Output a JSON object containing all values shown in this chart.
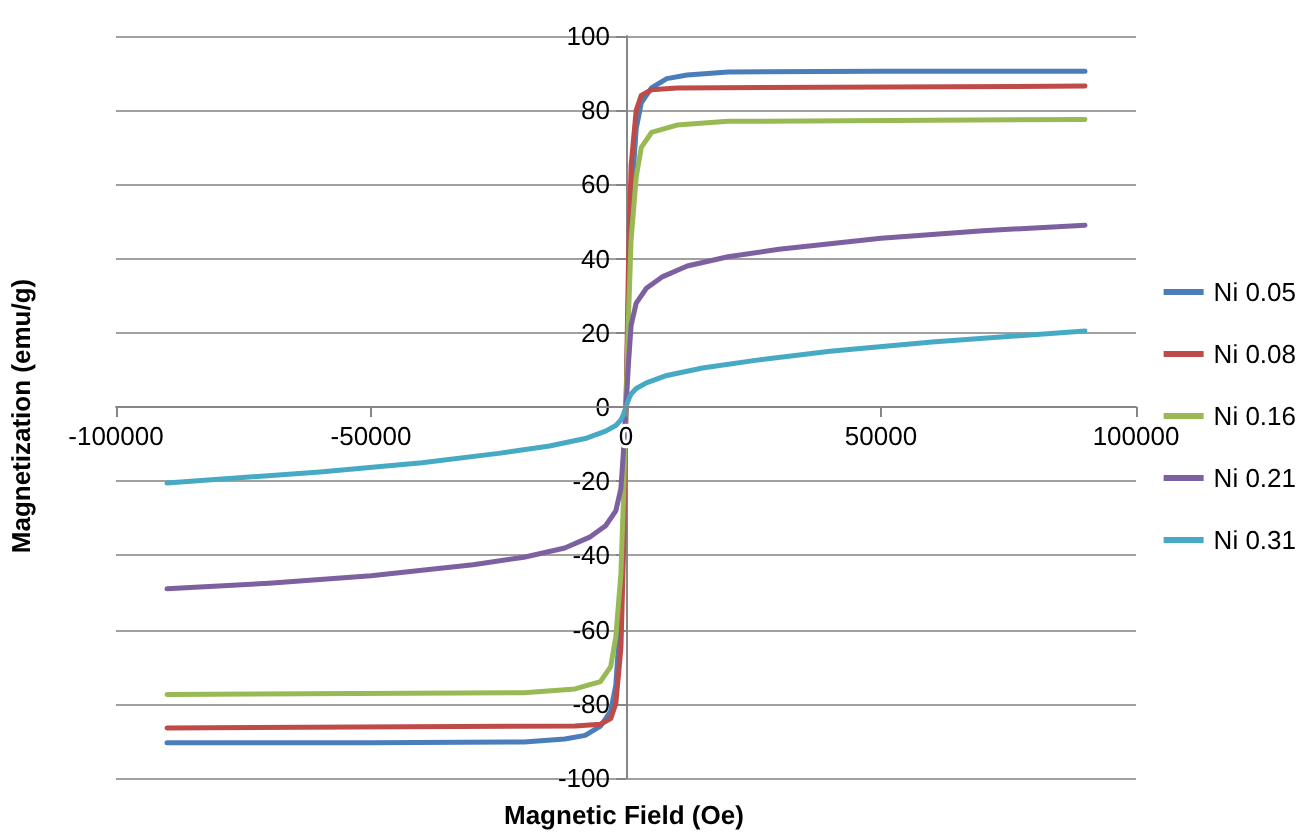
{
  "chart_data": {
    "type": "line",
    "xlabel": "Magnetic Field (Oe)",
    "ylabel": "Magnetization (emu/g)",
    "xlim": [
      -100000,
      100000
    ],
    "xticks": [
      -100000,
      -50000,
      0,
      50000,
      100000
    ],
    "ylim": [
      -100,
      100
    ],
    "yticks": [
      -100,
      -80,
      -60,
      -40,
      -20,
      0,
      20,
      40,
      60,
      80,
      100
    ],
    "grid": "y",
    "legend": "right",
    "marker": "none",
    "line_style": "solid",
    "series": [
      {
        "name": "Ni 0.05",
        "color": "#4a7ebb",
        "x": [
          -90000,
          -50000,
          -20000,
          -12000,
          -8000,
          -5000,
          -3000,
          -2000,
          -1000,
          -500,
          0,
          500,
          1000,
          2000,
          3000,
          5000,
          8000,
          12000,
          20000,
          50000,
          90000
        ],
        "values": [
          -90.5,
          -90.5,
          -90.3,
          -89.5,
          -88.5,
          -86,
          -82,
          -75,
          -55,
          -30,
          0,
          30,
          55,
          75,
          82,
          86,
          88.5,
          89.5,
          90.3,
          90.5,
          90.5
        ]
      },
      {
        "name": "Ni 0.08",
        "color": "#be4b48",
        "x": [
          -90000,
          -10000,
          -5000,
          -3000,
          -2000,
          -1000,
          -500,
          0,
          500,
          1000,
          2000,
          3000,
          5000,
          10000,
          90000
        ],
        "values": [
          -86.5,
          -86,
          -85.5,
          -84,
          -80,
          -65,
          -40,
          0,
          40,
          65,
          80,
          84,
          85.5,
          86,
          86.5
        ]
      },
      {
        "name": "Ni 0.16",
        "color": "#98b954",
        "x": [
          -90000,
          -20000,
          -10000,
          -5000,
          -3000,
          -2000,
          -1000,
          -500,
          0,
          500,
          1000,
          2000,
          3000,
          5000,
          10000,
          20000,
          90000
        ],
        "values": [
          -77.5,
          -77,
          -76,
          -74,
          -70,
          -62,
          -45,
          -25,
          0,
          25,
          45,
          62,
          70,
          74,
          76,
          77,
          77.5
        ]
      },
      {
        "name": "Ni 0.21",
        "color": "#7d60a0",
        "x": [
          -90000,
          -70000,
          -50000,
          -30000,
          -20000,
          -12000,
          -7000,
          -4000,
          -2000,
          -1000,
          -500,
          0,
          500,
          1000,
          2000,
          4000,
          7000,
          12000,
          20000,
          30000,
          50000,
          70000,
          90000
        ],
        "values": [
          -49,
          -47.5,
          -45.5,
          -42.5,
          -40.5,
          -38,
          -35,
          -32,
          -28,
          -22,
          -12,
          0,
          12,
          22,
          28,
          32,
          35,
          38,
          40.5,
          42.5,
          45.5,
          47.5,
          49
        ]
      },
      {
        "name": "Ni 0.31",
        "color": "#46aac5",
        "x": [
          -90000,
          -60000,
          -40000,
          -25000,
          -15000,
          -8000,
          -4000,
          -2000,
          -1000,
          -500,
          0,
          500,
          1000,
          2000,
          4000,
          8000,
          15000,
          25000,
          40000,
          60000,
          90000
        ],
        "values": [
          -20.5,
          -17.5,
          -15,
          -12.5,
          -10.5,
          -8.5,
          -6.5,
          -5,
          -3.5,
          -2,
          0,
          2,
          3.5,
          5,
          6.5,
          8.5,
          10.5,
          12.5,
          15,
          17.5,
          20.5
        ]
      }
    ]
  }
}
